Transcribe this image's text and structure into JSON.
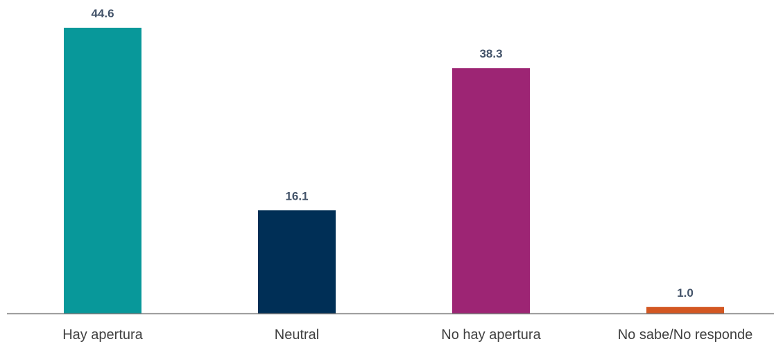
{
  "chart_data": {
    "type": "bar",
    "title": "",
    "xlabel": "",
    "ylabel": "",
    "categories": [
      "Hay apertura",
      "Neutral",
      "No hay apertura",
      "No sabe/No responde"
    ],
    "values": [
      44.6,
      16.1,
      38.3,
      1.0
    ],
    "value_labels": [
      "44.6",
      "16.1",
      "38.3",
      "1.0"
    ],
    "colors": [
      "#08989a",
      "#002f56",
      "#9d2574",
      "#d35722"
    ],
    "ylim": [
      0,
      44.6
    ],
    "grid": false,
    "legend": "none"
  }
}
